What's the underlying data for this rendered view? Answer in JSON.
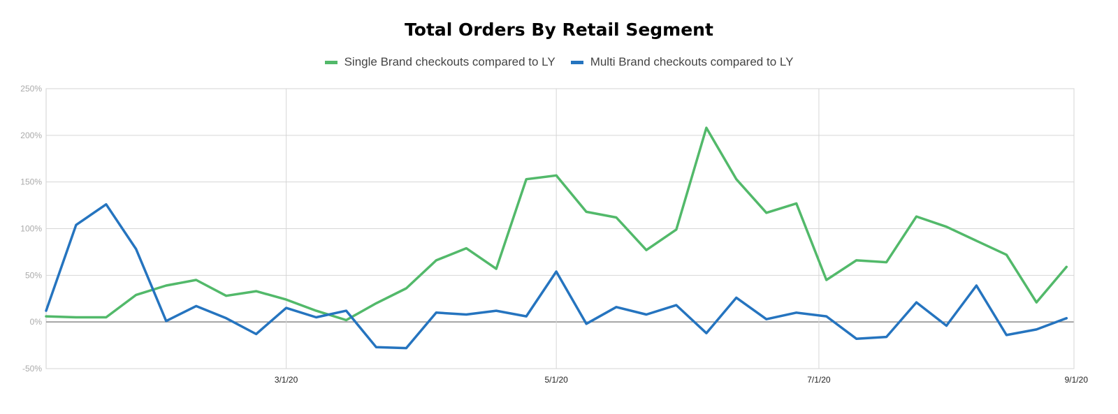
{
  "chart_data": {
    "type": "line",
    "title": "Total Orders By Retail Segment",
    "legend_position": "top",
    "grid": true,
    "ylim": [
      -50,
      250
    ],
    "y_ticks": [
      "-50%",
      "0%",
      "50%",
      "100%",
      "150%",
      "200%",
      "250%"
    ],
    "y_tick_values": [
      -50,
      0,
      50,
      100,
      150,
      200,
      250
    ],
    "x_tick_labels": [
      "3/1/20",
      "5/1/20",
      "7/1/20",
      "9/1/20"
    ],
    "x_tick_positions": [
      8,
      17,
      25.75,
      34.25
    ],
    "x_range": [
      0,
      34.25
    ],
    "series": [
      {
        "name": "Single Brand checkouts compared to LY",
        "color": "#52b96a",
        "values": [
          6,
          5,
          5,
          29,
          39,
          45,
          28,
          33,
          24,
          12,
          2,
          20,
          36,
          66,
          79,
          57,
          153,
          157,
          118,
          112,
          77,
          99,
          208,
          153,
          117,
          127,
          45,
          66,
          64,
          113,
          102,
          87,
          72,
          21,
          59
        ]
      },
      {
        "name": "Multi Brand checkouts compared to LY",
        "color": "#2574bf",
        "values": [
          12,
          104,
          126,
          78,
          1,
          17,
          4,
          -13,
          15,
          5,
          12,
          -27,
          -28,
          10,
          8,
          12,
          6,
          54,
          -2,
          16,
          8,
          18,
          -12,
          26,
          3,
          10,
          6,
          -18,
          -16,
          21,
          -4,
          39,
          -14,
          -8,
          4
        ]
      }
    ]
  }
}
